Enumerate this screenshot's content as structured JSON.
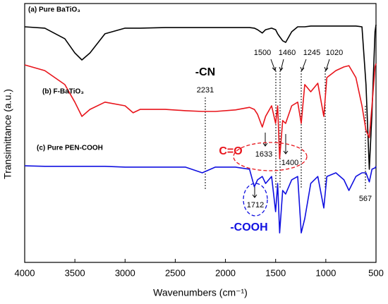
{
  "chart_data": {
    "type": "line",
    "xlabel": "Wavenumbers (cm⁻¹)",
    "ylabel": "Transimittance (a.u.)",
    "xlim": [
      4000,
      500
    ],
    "xticks": [
      4000,
      3500,
      3000,
      2500,
      2000,
      1500,
      1000,
      500
    ],
    "ylim": [
      0,
      100
    ],
    "x": [
      4000,
      3800,
      3600,
      3500,
      3430,
      3350,
      3200,
      3000,
      2920,
      2850,
      2600,
      2400,
      2231,
      2100,
      1900,
      1760,
      1712,
      1680,
      1633,
      1600,
      1540,
      1500,
      1480,
      1460,
      1430,
      1400,
      1340,
      1280,
      1245,
      1210,
      1150,
      1080,
      1020,
      990,
      900,
      820,
      770,
      700,
      640,
      600,
      567,
      540,
      510,
      500
    ],
    "series": [
      {
        "name": "(a) Pure BaTiO₃",
        "color": "#000000",
        "values": [
          91.0,
          90.5,
          86.4,
          80.9,
          78.2,
          80.9,
          88.3,
          90.5,
          90.5,
          90.5,
          90.7,
          90.7,
          90.7,
          90.7,
          90.7,
          90.7,
          90.5,
          89.9,
          88.6,
          89.9,
          90.5,
          89.9,
          88.3,
          87.2,
          85.6,
          85.0,
          89.1,
          91.0,
          91.0,
          91.0,
          91.3,
          91.3,
          91.3,
          91.3,
          91.3,
          91.3,
          91.3,
          91.3,
          91.0,
          68.7,
          36.0,
          57.8,
          89.1,
          91.8
        ]
      },
      {
        "name": "(b) F-BaTiO₃",
        "color": "#e8141b",
        "values": [
          76.3,
          74.1,
          68.7,
          61.9,
          56.4,
          59.1,
          61.9,
          60.5,
          57.8,
          59.1,
          59.1,
          58.6,
          58.3,
          58.3,
          58.9,
          59.9,
          59.1,
          57.2,
          52.3,
          56.4,
          60.5,
          53.7,
          60.5,
          40.1,
          54.8,
          53.7,
          60.5,
          61.9,
          53.7,
          68.7,
          65.9,
          69.2,
          56.4,
          71.4,
          74.1,
          75.5,
          76.0,
          71.4,
          60.5,
          51.0,
          48.2,
          60.5,
          75.5,
          76.8
        ]
      },
      {
        "name": "(c) Pure PEN-COOH",
        "color": "#1010e0",
        "values": [
          37.3,
          37.1,
          37.1,
          37.1,
          37.1,
          37.1,
          37.1,
          36.8,
          36.8,
          36.8,
          36.8,
          36.8,
          34.6,
          36.8,
          36.8,
          36.0,
          29.2,
          31.9,
          33.2,
          30.5,
          33.2,
          19.6,
          30.5,
          11.4,
          27.8,
          26.4,
          31.9,
          33.2,
          11.4,
          16.9,
          30.5,
          33.2,
          21.0,
          33.2,
          34.6,
          31.9,
          27.8,
          33.2,
          34.6,
          34.6,
          31.1,
          36.0,
          36.5,
          37.1
        ]
      }
    ],
    "annotations": [
      "-CN",
      "2231",
      "1500",
      "1460",
      "1245",
      "1020",
      "C=O",
      "1633",
      "1400",
      "1712",
      "-COOH",
      "567"
    ]
  }
}
